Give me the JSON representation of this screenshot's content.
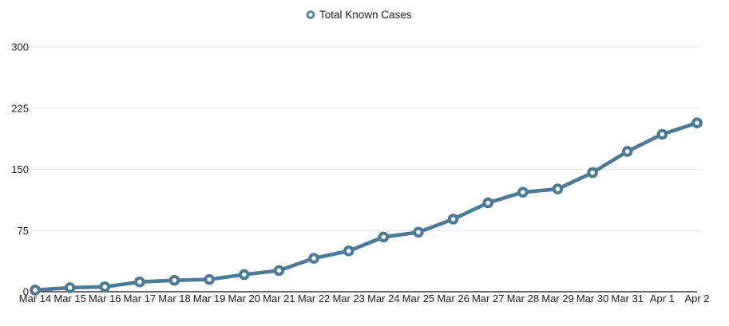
{
  "page": {
    "background": "#ffffff"
  },
  "legend": {
    "position": "top-center",
    "items": [
      {
        "label": "Total Known Cases",
        "marker": "open-circle-icon"
      }
    ]
  },
  "chart_data": {
    "type": "line",
    "title": "",
    "xlabel": "",
    "ylabel": "",
    "categories": [
      "Mar 14",
      "Mar 15",
      "Mar 16",
      "Mar 17",
      "Mar 18",
      "Mar 19",
      "Mar 20",
      "Mar 21",
      "Mar 22",
      "Mar 23",
      "Mar 24",
      "Mar 25",
      "Mar 26",
      "Mar 27",
      "Mar 28",
      "Mar 29",
      "Mar 30",
      "Mar 31",
      "Apr 1",
      "Apr 2"
    ],
    "series": [
      {
        "name": "Total Known Cases",
        "values": [
          2,
          5,
          6,
          12,
          14,
          15,
          21,
          26,
          41,
          50,
          67,
          73,
          89,
          109,
          122,
          126,
          146,
          172,
          193,
          207
        ]
      }
    ],
    "ylim": [
      0,
      300
    ],
    "yticks": [
      0,
      75,
      150,
      225,
      300
    ],
    "grid": true,
    "legend_position": "top-center",
    "marker_style": "open-circle",
    "colors": {
      "series": "#4a7a99",
      "marker_fill": "#ffffff",
      "gridline": "#e4e4e4",
      "axis": "#111111",
      "text": "#1c1c1c"
    }
  }
}
